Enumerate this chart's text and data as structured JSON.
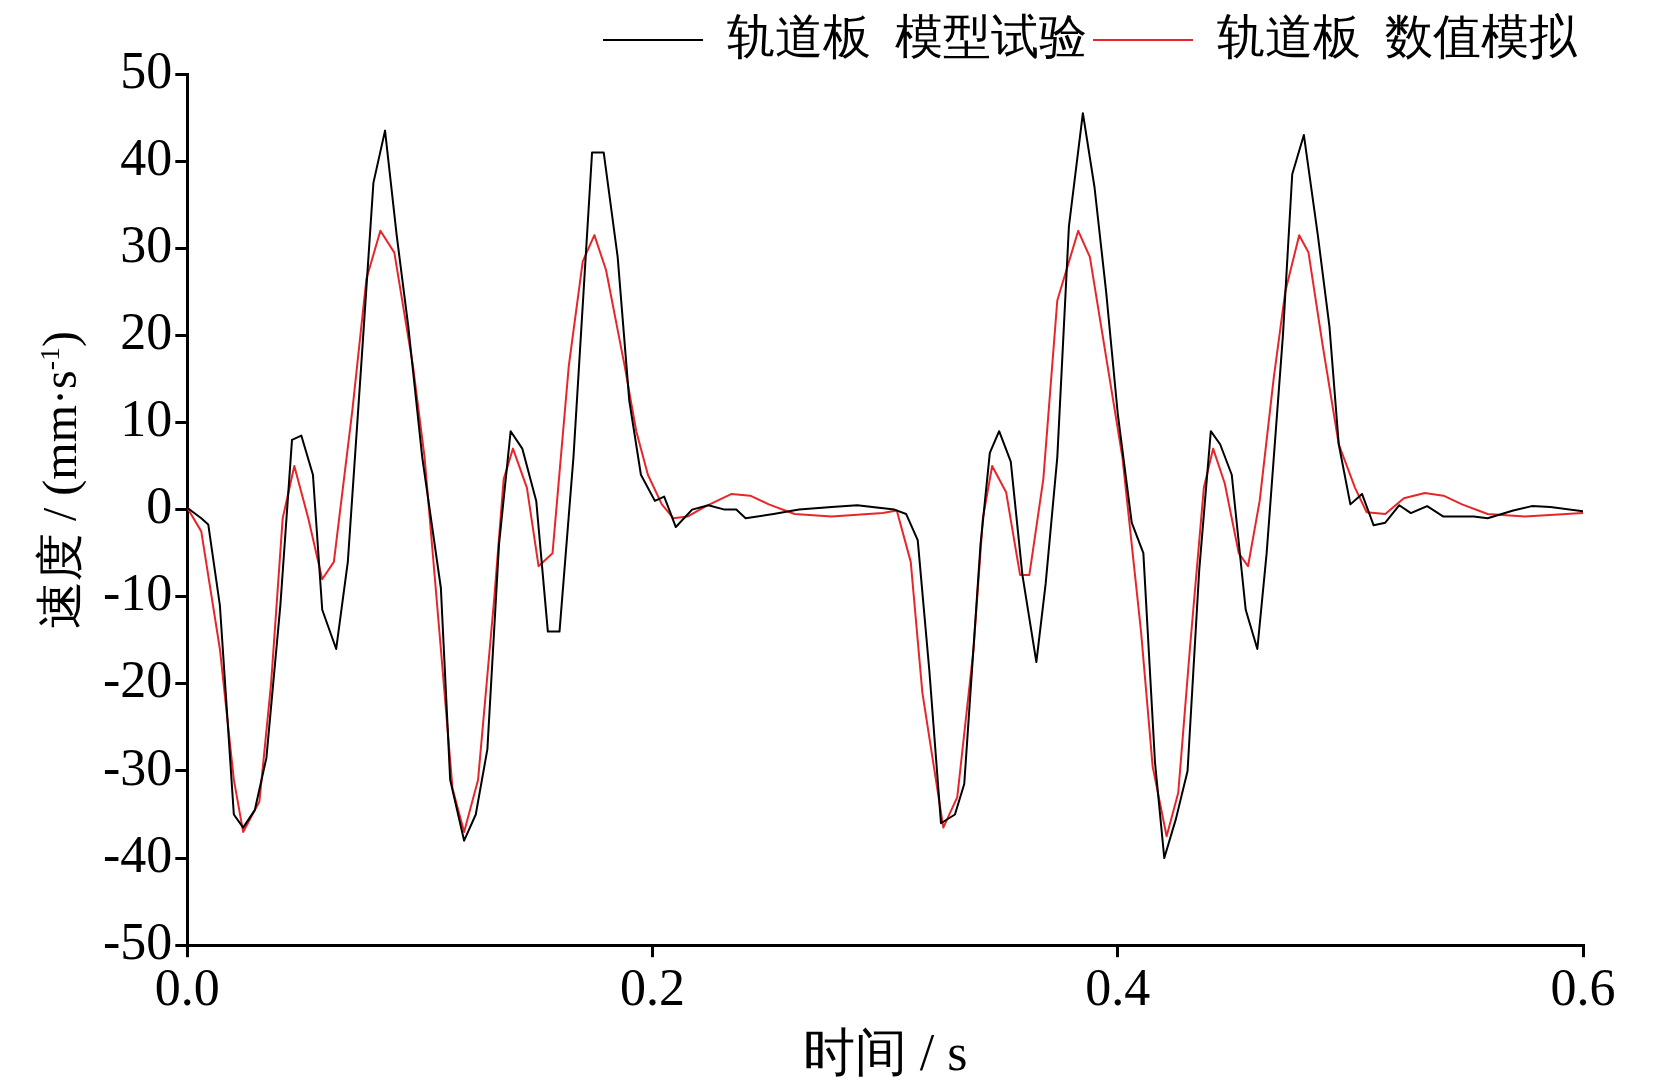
{
  "chart_data": {
    "type": "line",
    "xlabel": "时间 / s",
    "ylabel": "速度 / (mm·s$^{-1}$)",
    "xlim": [
      0,
      0.6
    ],
    "xticks": [
      {
        "value": 0,
        "label": "0.0"
      },
      0.2,
      0.4,
      0.6
    ],
    "ylim": [
      -50,
      50
    ],
    "yticks": [
      -50,
      -40,
      -30,
      -20,
      -10,
      0,
      10,
      20,
      30,
      40,
      50
    ],
    "grid": false,
    "legend": "top right",
    "marker": "none",
    "line_style": "solid",
    "series": [
      {
        "name": "轨道板  模型试验",
        "color": "#000000",
        "x": [
          0,
          0.006,
          0.009,
          0.014,
          0.02,
          0.024,
          0.029,
          0.034,
          0.04,
          0.045,
          0.049,
          0.054,
          0.058,
          0.064,
          0.069,
          0.075,
          0.08,
          0.085,
          0.09,
          0.095,
          0.101,
          0.109,
          0.113,
          0.119,
          0.124,
          0.129,
          0.134,
          0.139,
          0.144,
          0.15,
          0.155,
          0.16,
          0.166,
          0.174,
          0.179,
          0.185,
          0.19,
          0.195,
          0.201,
          0.205,
          0.21,
          0.217,
          0.224,
          0.231,
          0.236,
          0.24,
          0.252,
          0.263,
          0.277,
          0.288,
          0.304,
          0.309,
          0.314,
          0.319,
          0.324,
          0.33,
          0.334,
          0.341,
          0.345,
          0.349,
          0.354,
          0.359,
          0.365,
          0.369,
          0.374,
          0.379,
          0.385,
          0.39,
          0.395,
          0.4,
          0.406,
          0.411,
          0.416,
          0.42,
          0.425,
          0.43,
          0.435,
          0.44,
          0.444,
          0.449,
          0.455,
          0.46,
          0.464,
          0.471,
          0.475,
          0.48,
          0.486,
          0.491,
          0.495,
          0.5,
          0.505,
          0.51,
          0.515,
          0.521,
          0.526,
          0.533,
          0.54,
          0.553,
          0.559,
          0.57,
          0.578,
          0.586,
          0.6
        ],
        "values": [
          0.2,
          -1,
          -1.7,
          -11,
          -35,
          -36.5,
          -34.5,
          -28.5,
          -11,
          8,
          8.5,
          4,
          -11.5,
          -16,
          -6,
          17.5,
          37.5,
          43.5,
          31.5,
          21,
          6,
          -9,
          -31,
          -38,
          -35,
          -27.5,
          -4,
          9,
          7,
          1,
          -14,
          -14,
          6,
          41,
          41,
          29,
          12.5,
          4,
          1,
          1.5,
          -2,
          0,
          0.5,
          0,
          0,
          -1,
          -0.5,
          0,
          0.3,
          0.5,
          0,
          -0.5,
          -3.5,
          -18.5,
          -36,
          -35,
          -31.5,
          -4,
          6.5,
          9,
          5.5,
          -7.5,
          -17.5,
          -8.5,
          6,
          32.5,
          45.5,
          37,
          25,
          11,
          -1.5,
          -5,
          -29,
          -40,
          -35.5,
          -30,
          -7,
          9,
          7.5,
          4,
          -11.5,
          -16,
          -5,
          20,
          38.5,
          43,
          31.5,
          21,
          7.5,
          0.6,
          1.8,
          -1.8,
          -1.5,
          0.5,
          -0.4,
          0.4,
          -0.8,
          -0.8,
          -1,
          -0.1,
          0.4,
          0.3,
          -0.2
        ]
      },
      {
        "name": "轨道板  数值模拟",
        "color": "#e8262a",
        "x": [
          0,
          0.006,
          0.014,
          0.02,
          0.024,
          0.031,
          0.036,
          0.041,
          0.046,
          0.052,
          0.058,
          0.063,
          0.071,
          0.077,
          0.083,
          0.089,
          0.097,
          0.102,
          0.109,
          0.114,
          0.119,
          0.125,
          0.132,
          0.136,
          0.14,
          0.146,
          0.151,
          0.157,
          0.164,
          0.17,
          0.175,
          0.18,
          0.188,
          0.193,
          0.198,
          0.204,
          0.209,
          0.215,
          0.223,
          0.234,
          0.242,
          0.25,
          0.261,
          0.277,
          0.299,
          0.305,
          0.311,
          0.316,
          0.325,
          0.331,
          0.338,
          0.342,
          0.346,
          0.352,
          0.358,
          0.362,
          0.368,
          0.374,
          0.383,
          0.388,
          0.395,
          0.402,
          0.41,
          0.415,
          0.421,
          0.426,
          0.431,
          0.437,
          0.441,
          0.446,
          0.452,
          0.456,
          0.461,
          0.467,
          0.472,
          0.478,
          0.482,
          0.488,
          0.495,
          0.502,
          0.507,
          0.515,
          0.523,
          0.532,
          0.54,
          0.548,
          0.559,
          0.575,
          0.6
        ],
        "values": [
          0.2,
          -2.5,
          -16,
          -31,
          -37,
          -33.5,
          -20,
          -1,
          5,
          -1,
          -8,
          -6,
          11.5,
          26.5,
          32,
          29.5,
          16.5,
          6,
          -16,
          -32,
          -37,
          -31,
          -10,
          3.5,
          7,
          2.5,
          -6.5,
          -5,
          16.5,
          28.5,
          31.5,
          27.5,
          16.5,
          9,
          4,
          0.6,
          -1,
          -0.8,
          0.4,
          1.8,
          1.6,
          0.6,
          -0.5,
          -0.8,
          -0.4,
          -0.1,
          -6,
          -21,
          -36.5,
          -33,
          -16,
          -1,
          5,
          2,
          -7.5,
          -7.5,
          3.5,
          24,
          32,
          29,
          17.5,
          6,
          -14,
          -29.5,
          -37.5,
          -32.5,
          -16,
          2.5,
          7,
          3,
          -5,
          -6.5,
          1,
          15,
          25,
          31.5,
          29.5,
          19,
          7.5,
          2.5,
          -0.3,
          -0.5,
          1.3,
          1.9,
          1.6,
          0.6,
          -0.5,
          -0.8,
          -0.4
        ]
      }
    ]
  }
}
